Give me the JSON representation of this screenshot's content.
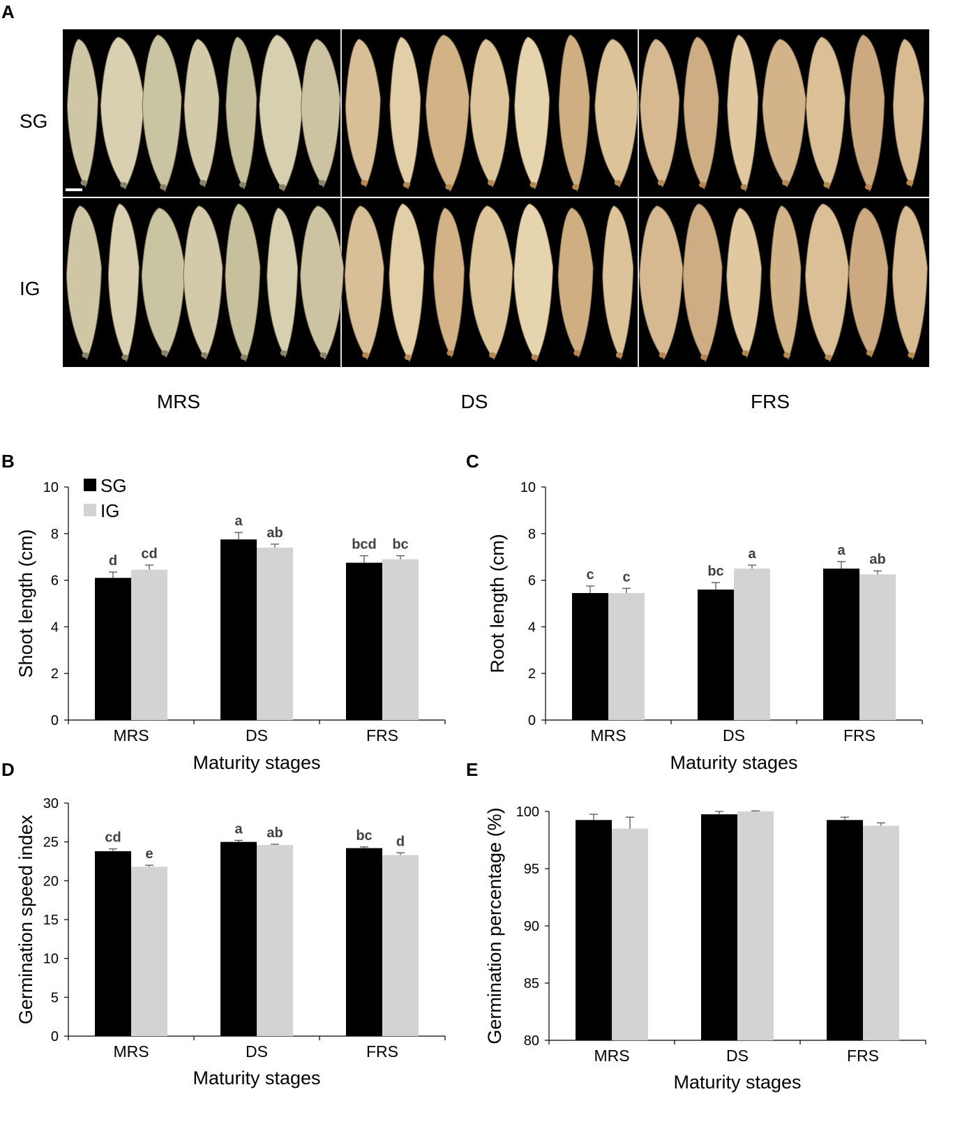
{
  "figure": {
    "panel_labels": [
      "A",
      "B",
      "C",
      "D",
      "E"
    ],
    "photo": {
      "row_labels": [
        "SG",
        "IG"
      ],
      "column_labels": [
        "MRS",
        "DS",
        "FRS"
      ]
    }
  },
  "chart_data": [
    {
      "type": "bar",
      "panel": "B",
      "categories": [
        "MRS",
        "DS",
        "FRS"
      ],
      "series": [
        {
          "name": "SG",
          "values": [
            6.1,
            7.75,
            6.75
          ],
          "errors": [
            0.25,
            0.3,
            0.3
          ],
          "letters": [
            "d",
            "a",
            "bcd"
          ],
          "color": "#000000"
        },
        {
          "name": "IG",
          "values": [
            6.45,
            7.4,
            6.9
          ],
          "errors": [
            0.2,
            0.15,
            0.15
          ],
          "letters": [
            "cd",
            "ab",
            "bc"
          ],
          "color": "#d3d3d3"
        }
      ],
      "xlabel": "Maturity stages",
      "ylabel": "Shoot length (cm)",
      "ylim": [
        0,
        10
      ],
      "yticks": [
        0,
        2,
        4,
        6,
        8,
        10
      ],
      "legend": "top-left",
      "grid": false
    },
    {
      "type": "bar",
      "panel": "C",
      "categories": [
        "MRS",
        "DS",
        "FRS"
      ],
      "series": [
        {
          "name": "SG",
          "values": [
            5.45,
            5.6,
            6.5
          ],
          "errors": [
            0.3,
            0.3,
            0.3
          ],
          "letters": [
            "c",
            "bc",
            "a"
          ],
          "color": "#000000"
        },
        {
          "name": "IG",
          "values": [
            5.45,
            6.5,
            6.25
          ],
          "errors": [
            0.2,
            0.15,
            0.15
          ],
          "letters": [
            "c",
            "a",
            "ab"
          ],
          "color": "#d3d3d3"
        }
      ],
      "xlabel": "Maturity stages",
      "ylabel": "Root length (cm)",
      "ylim": [
        0,
        10
      ],
      "yticks": [
        0,
        2,
        4,
        6,
        8,
        10
      ],
      "grid": false
    },
    {
      "type": "bar",
      "panel": "D",
      "categories": [
        "MRS",
        "DS",
        "FRS"
      ],
      "series": [
        {
          "name": "SG",
          "values": [
            23.8,
            25.0,
            24.2
          ],
          "errors": [
            0.3,
            0.2,
            0.15
          ],
          "letters": [
            "cd",
            "a",
            "bc"
          ],
          "color": "#000000"
        },
        {
          "name": "IG",
          "values": [
            21.8,
            24.6,
            23.3
          ],
          "errors": [
            0.2,
            0.1,
            0.3
          ],
          "letters": [
            "e",
            "ab",
            "d"
          ],
          "color": "#d3d3d3"
        }
      ],
      "xlabel": "Maturity stages",
      "ylabel": "Germination speed index",
      "ylim": [
        0,
        30
      ],
      "yticks": [
        0,
        5,
        10,
        15,
        20,
        25,
        30
      ],
      "grid": false
    },
    {
      "type": "bar",
      "panel": "E",
      "categories": [
        "MRS",
        "DS",
        "FRS"
      ],
      "series": [
        {
          "name": "SG",
          "values": [
            99.25,
            99.75,
            99.25
          ],
          "errors": [
            0.5,
            0.25,
            0.25
          ],
          "letters": [
            "",
            "",
            ""
          ],
          "color": "#000000"
        },
        {
          "name": "IG",
          "values": [
            98.5,
            100.0,
            98.75
          ],
          "errors": [
            1.0,
            0.05,
            0.25
          ],
          "letters": [
            "",
            "",
            ""
          ],
          "color": "#d3d3d3"
        }
      ],
      "xlabel": "Maturity stages",
      "ylabel": "Germination percentage (%)",
      "ylim": [
        80,
        100
      ],
      "yticks": [
        80,
        85,
        90,
        95,
        100
      ],
      "grid": false
    }
  ]
}
